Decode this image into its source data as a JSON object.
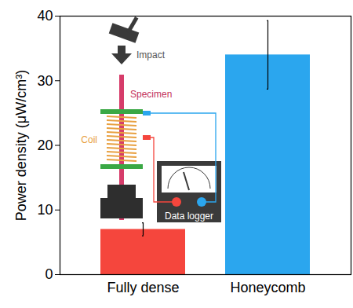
{
  "chart_data": {
    "type": "bar",
    "categories": [
      "Fully dense",
      "Honeycomb"
    ],
    "values": [
      7.0,
      34.0
    ],
    "errors": [
      1.0,
      5.3
    ],
    "colors": [
      "#f5463d",
      "#2ba6ee"
    ],
    "ylabel": "Power density (μW/cm³)",
    "ylim": [
      0,
      40
    ],
    "yticks": [
      0,
      10,
      20,
      30,
      40
    ],
    "annotations": [
      "Impact",
      "Specimen",
      "Coil",
      "Data logger"
    ]
  }
}
